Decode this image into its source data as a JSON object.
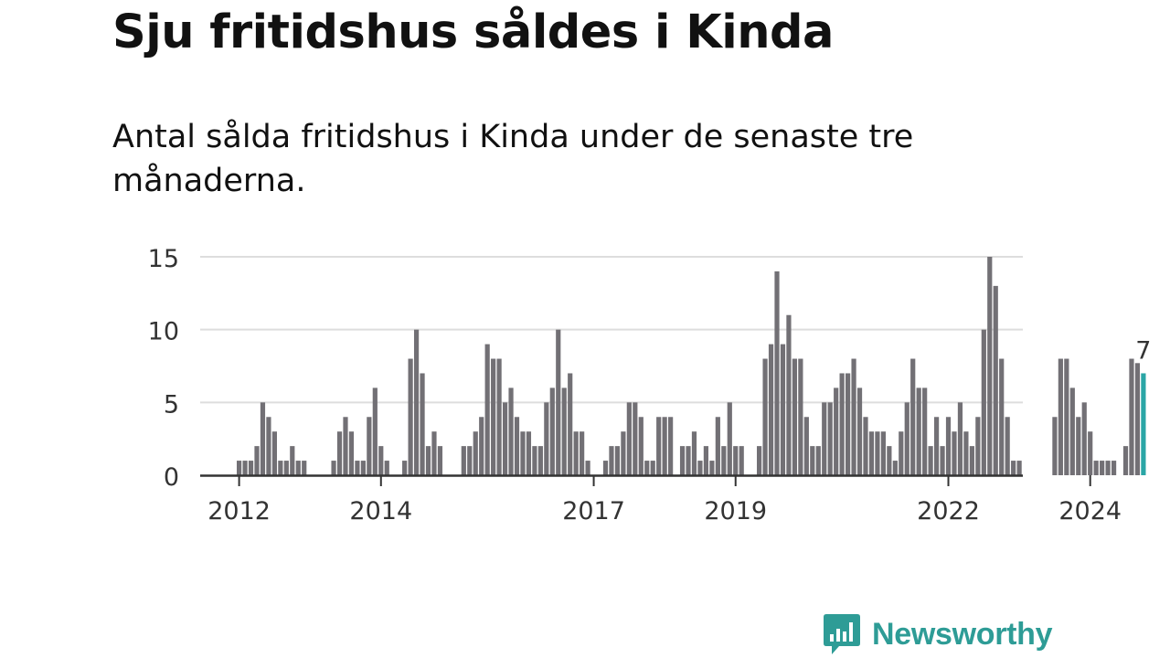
{
  "title": "Sju fritidshus såldes i Kinda",
  "subtitle": "Antal sålda fritidshus i Kinda under de senaste tre månaderna.",
  "brand": {
    "name": "Newsworthy",
    "color": "#2e9c96"
  },
  "colors": {
    "bar": "#727075",
    "highlight": "#2aa6a6",
    "grid": "#dddddd",
    "axis": "#333333"
  },
  "chart_data": {
    "type": "bar",
    "x_axis": "months",
    "start": "2012-01",
    "ylim": [
      0,
      15
    ],
    "yticks": [
      0,
      5,
      10,
      15
    ],
    "xticks": [
      {
        "label": "2012",
        "index": 0
      },
      {
        "label": "2014",
        "index": 24
      },
      {
        "label": "2017",
        "index": 60
      },
      {
        "label": "2019",
        "index": 84
      },
      {
        "label": "2022",
        "index": 120
      },
      {
        "label": "2024",
        "index": 144
      }
    ],
    "values": [
      1,
      1,
      1,
      2,
      5,
      4,
      3,
      1,
      1,
      2,
      1,
      1,
      0,
      0,
      0,
      0,
      1,
      3,
      4,
      3,
      1,
      1,
      4,
      6,
      2,
      1,
      0,
      0,
      1,
      8,
      10,
      7,
      2,
      3,
      2,
      0,
      0,
      0,
      2,
      2,
      3,
      4,
      9,
      8,
      8,
      5,
      6,
      4,
      3,
      3,
      2,
      2,
      5,
      6,
      10,
      6,
      7,
      3,
      3,
      1,
      0,
      0,
      1,
      2,
      2,
      3,
      5,
      5,
      4,
      1,
      1,
      4,
      4,
      4,
      0,
      2,
      2,
      3,
      1,
      2,
      1,
      4,
      2,
      5,
      2,
      2,
      0,
      0,
      2,
      8,
      9,
      14,
      9,
      11,
      8,
      8,
      4,
      2,
      2,
      5,
      5,
      6,
      7,
      7,
      8,
      6,
      4,
      3,
      3,
      3,
      2,
      1,
      3,
      5,
      8,
      6,
      6,
      2,
      4,
      2,
      4,
      3,
      5,
      3,
      2,
      4,
      10,
      15,
      13,
      8,
      4,
      1,
      1,
      0,
      0,
      0,
      0,
      0,
      4,
      8,
      8,
      6,
      4,
      5,
      3,
      1,
      1,
      1,
      1,
      0,
      2,
      8,
      7.7,
      7
    ],
    "highlight_label": "7",
    "grid": true
  }
}
